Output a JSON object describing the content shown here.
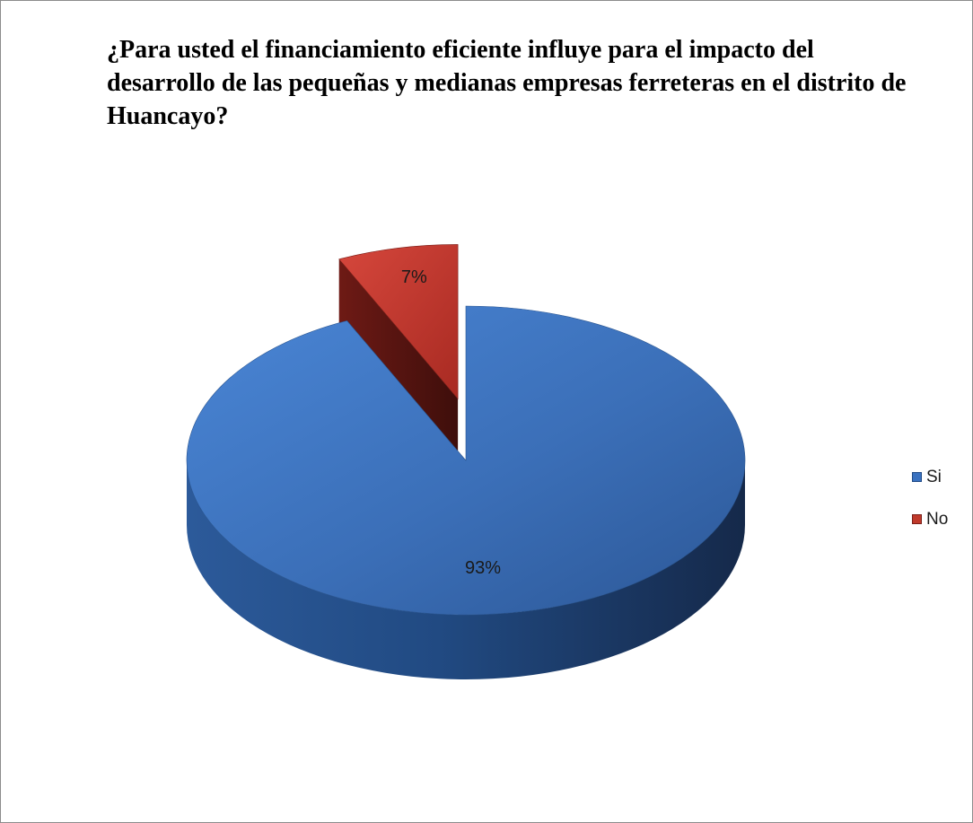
{
  "chart_data": {
    "type": "pie",
    "title": "¿Para usted el financiamiento eficiente influye para el impacto del desarrollo de las pequeñas y medianas empresas ferreteras en el distrito de Huancayo?",
    "categories": [
      "Si",
      "No"
    ],
    "values": [
      93,
      7
    ],
    "data_labels": [
      "93%",
      "7%"
    ],
    "colors": [
      "#3a72c0",
      "#c0392b"
    ],
    "style": "3d-exploded",
    "exploded": "No",
    "legend_position": "right"
  }
}
